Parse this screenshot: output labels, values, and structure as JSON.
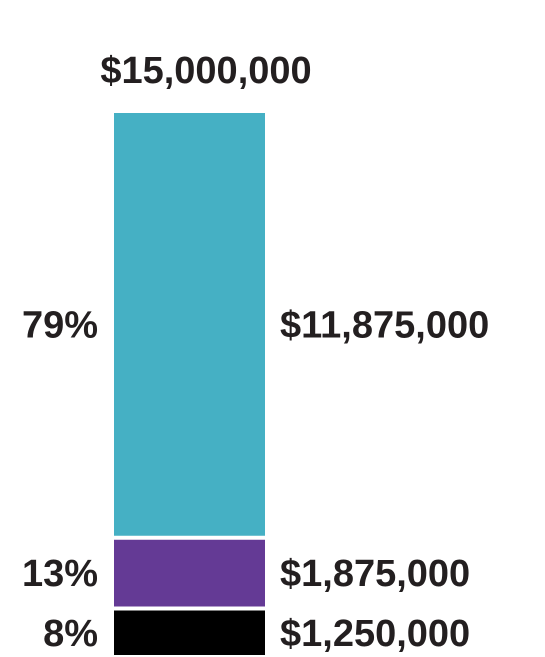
{
  "chart_data": {
    "type": "bar",
    "stacked": true,
    "orientation": "vertical",
    "total": 15000000,
    "total_label": "$15,000,000",
    "segments": [
      {
        "value": 11875000,
        "value_label": "$11,875,000",
        "percent_label": "79%",
        "color": "#45b0c4"
      },
      {
        "value": 1875000,
        "value_label": "$1,875,000",
        "percent_label": "13%",
        "color": "#643a95"
      },
      {
        "value": 1250000,
        "value_label": "$1,250,000",
        "percent_label": "8%",
        "color": "#000000"
      }
    ],
    "grid": false,
    "legend": "none"
  }
}
